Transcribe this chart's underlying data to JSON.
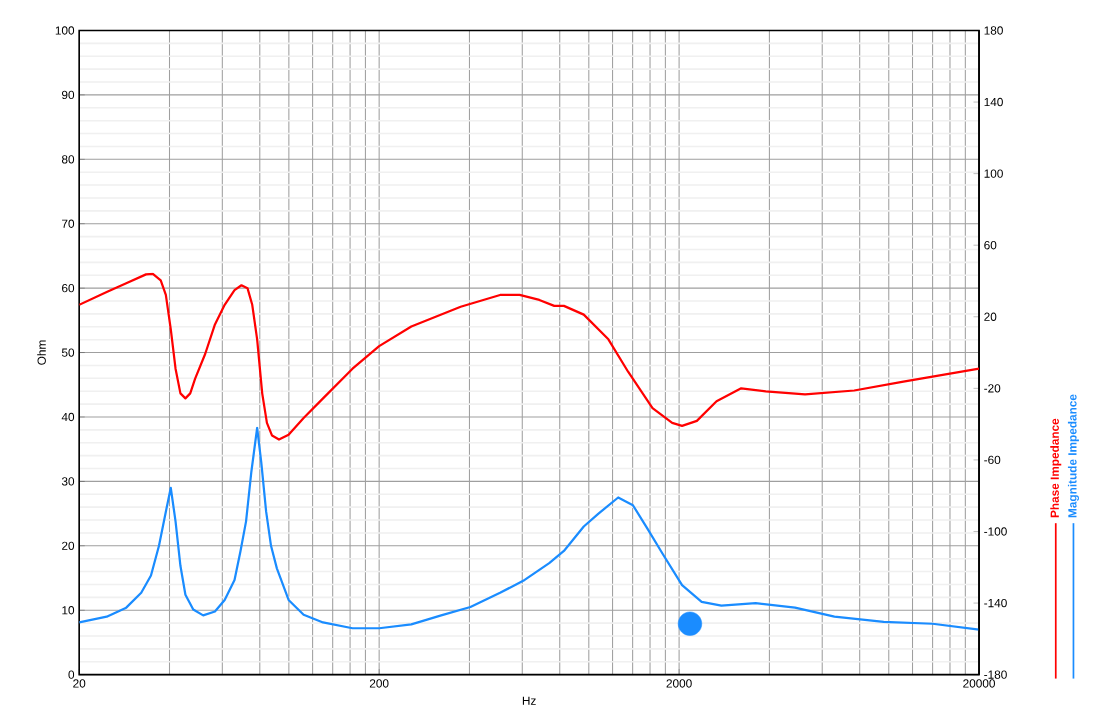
{
  "chart_data": {
    "type": "line",
    "xlabel": "Hz",
    "ylabel": "Ohm",
    "log": "x",
    "grid": true,
    "legend": "right",
    "xlim": [
      20,
      20000
    ],
    "xticks": [
      20,
      200,
      2000,
      20000
    ],
    "ylim": [
      0,
      100
    ],
    "yticks": [
      0,
      10,
      20,
      30,
      40,
      50,
      60,
      70,
      80,
      90,
      100
    ],
    "y2lim": [
      -180,
      180
    ],
    "y2ticks": [
      -180,
      -140,
      -100,
      -60,
      -20,
      20,
      60,
      100,
      140,
      180
    ],
    "series": [
      {
        "name": "Magnitude Impedance",
        "color": "#1a8cff",
        "axis": "y",
        "x": [
          20,
          24.7,
          28.7,
          32.2,
          34.7,
          36.9,
          38.9,
          40.4,
          41.9,
          43.5,
          45.2,
          48,
          51.8,
          56.7,
          61.1,
          65.9,
          69,
          72,
          75,
          78.4,
          80.9,
          84,
          87.2,
          91.2,
          99.8,
          112,
          130,
          163,
          200,
          256,
          322,
          403,
          506,
          611,
          738,
          826,
          962,
          1077,
          1253,
          1403,
          1572,
          1760,
          2046,
          2378,
          2767,
          3600,
          4870,
          6590,
          9620,
          14000,
          20000
        ],
        "values": [
          8.1,
          9,
          10.4,
          12.7,
          15.4,
          20,
          25.3,
          29,
          23.8,
          16.9,
          12.4,
          10.1,
          9.2,
          9.8,
          11.6,
          14.7,
          19.2,
          23.8,
          31.5,
          38.3,
          33,
          25.3,
          20,
          16.5,
          11.6,
          9.3,
          8.1,
          7.2,
          7.2,
          7.8,
          9.2,
          10.5,
          12.7,
          14.7,
          17.3,
          19.2,
          23,
          25,
          27.5,
          26.3,
          22.6,
          18.8,
          13.9,
          11.3,
          10.7,
          11.1,
          10.4,
          9,
          8.2,
          7.9,
          7
        ]
      },
      {
        "name": "Phase Impedance",
        "color": "#ff0000",
        "axis": "y2",
        "x": [
          20,
          24.7,
          28.7,
          33.4,
          35.2,
          37.4,
          38.9,
          40.4,
          41.9,
          43.5,
          45.2,
          46.9,
          48.7,
          52.6,
          56.7,
          61.1,
          65.9,
          69.5,
          72.8,
          75.5,
          78.4,
          81.5,
          84.5,
          87.9,
          92.7,
          99.8,
          112,
          130,
          163,
          200,
          256,
          374,
          506,
          588,
          684,
          767,
          826,
          962,
          1162,
          1352,
          1631,
          1897,
          2046,
          2292,
          2666,
          3221,
          3890,
          5260,
          7670,
          11190,
          20000
        ],
        "values": [
          26.7,
          33.8,
          38.7,
          43.7,
          44,
          40.4,
          32.2,
          13,
          -9,
          -22.8,
          -25.6,
          -22.8,
          -14.6,
          -0.8,
          15.7,
          26.7,
          34.9,
          37.6,
          36,
          26.7,
          7.4,
          -22.8,
          -39.3,
          -46.4,
          -48.6,
          -45.9,
          -36.6,
          -25.6,
          -9,
          3.6,
          14.6,
          25.6,
          32.2,
          32.2,
          29.4,
          26.1,
          26.1,
          21.2,
          7.4,
          -10.7,
          -31,
          -39.3,
          -41,
          -38.2,
          -27.2,
          -20,
          -21.7,
          -23.4,
          -21.2,
          -16.2,
          -9
        ]
      },
      {
        "type": "scatter",
        "marker": "circle",
        "color": "#1a8cff",
        "x": [
          2174
        ],
        "values": [
          7.9
        ]
      }
    ]
  }
}
